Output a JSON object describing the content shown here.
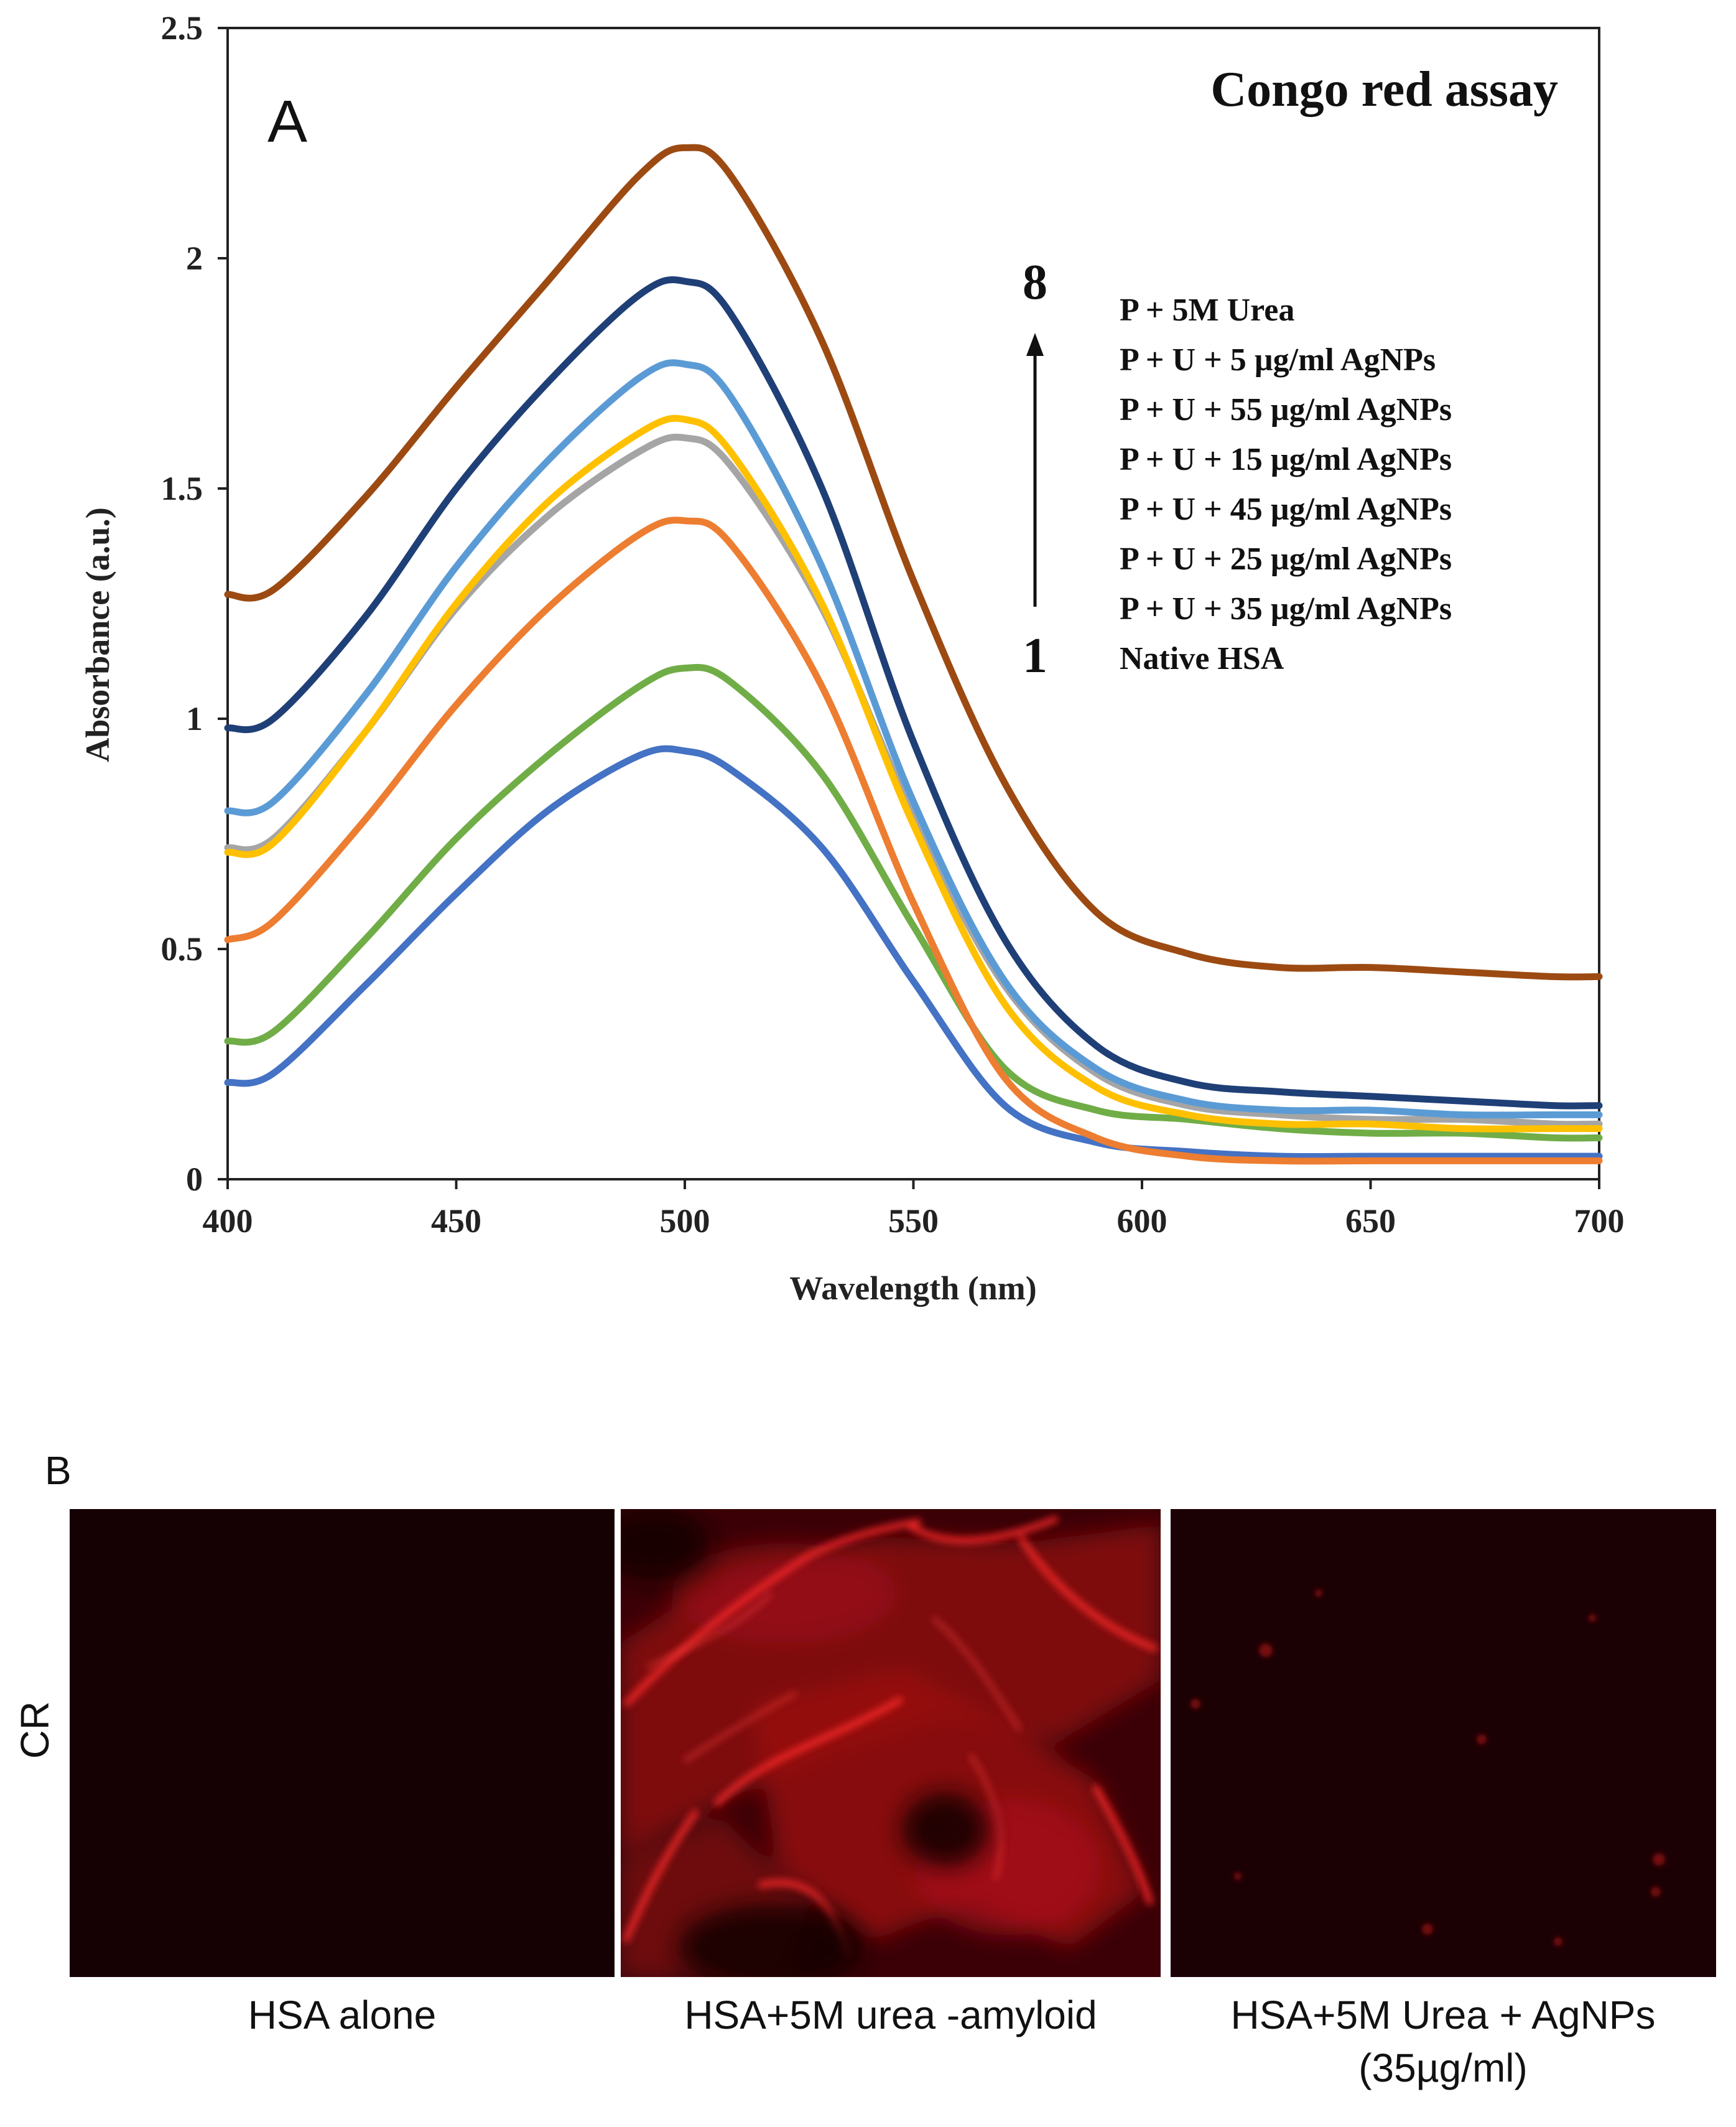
{
  "chart_data": {
    "type": "line",
    "title": "Congo red assay",
    "panel_label": "A",
    "xlabel": "Wavelength (nm)",
    "ylabel": "Absorbance (a.u.)",
    "xlim": [
      400,
      700
    ],
    "ylim": [
      0,
      2.5
    ],
    "x_ticks": [
      "400",
      "450",
      "500",
      "550",
      "600",
      "650",
      "700"
    ],
    "y_ticks": [
      "0",
      "0.5",
      "1",
      "1.5",
      "2",
      "2.5"
    ],
    "grid": false,
    "legend_position": "top-right",
    "order_marks": {
      "top": "8",
      "bottom": "1"
    },
    "x": [
      400,
      410,
      430,
      450,
      470,
      490,
      500,
      510,
      530,
      550,
      570,
      590,
      610,
      630,
      650,
      670,
      690,
      700
    ],
    "series": [
      {
        "name": "P + 5M Urea",
        "color": "#9C4A12",
        "values": [
          1.27,
          1.28,
          1.48,
          1.72,
          1.95,
          2.18,
          2.24,
          2.18,
          1.82,
          1.3,
          0.86,
          0.58,
          0.49,
          0.46,
          0.46,
          0.45,
          0.44,
          0.44
        ]
      },
      {
        "name": "P + U + 5 µg/ml AgNPs",
        "color": "#1F3F77",
        "values": [
          0.98,
          1.0,
          1.22,
          1.5,
          1.73,
          1.92,
          1.95,
          1.88,
          1.5,
          0.95,
          0.52,
          0.29,
          0.21,
          0.19,
          0.18,
          0.17,
          0.16,
          0.16
        ]
      },
      {
        "name": "P + U + 55 µg/ml AgNPs",
        "color": "#5B9BD5",
        "values": [
          0.8,
          0.82,
          1.05,
          1.33,
          1.56,
          1.74,
          1.77,
          1.7,
          1.33,
          0.82,
          0.43,
          0.24,
          0.17,
          0.15,
          0.15,
          0.14,
          0.14,
          0.14
        ]
      },
      {
        "name": "P + U + 15 µg/ml AgNPs",
        "color": "#FFC000",
        "values": [
          0.71,
          0.73,
          0.97,
          1.25,
          1.47,
          1.62,
          1.65,
          1.58,
          1.25,
          0.77,
          0.38,
          0.2,
          0.14,
          0.12,
          0.12,
          0.11,
          0.11,
          0.11
        ]
      },
      {
        "name": "P + U + 45 µg/ml AgNPs",
        "color": "#A5A5A5",
        "values": [
          0.72,
          0.74,
          0.97,
          1.24,
          1.44,
          1.58,
          1.61,
          1.55,
          1.24,
          0.79,
          0.42,
          0.23,
          0.16,
          0.14,
          0.13,
          0.13,
          0.12,
          0.12
        ]
      },
      {
        "name": "P + U + 25 µg/ml AgNPs",
        "color": "#ED7D31",
        "values": [
          0.52,
          0.56,
          0.78,
          1.03,
          1.24,
          1.4,
          1.43,
          1.38,
          1.07,
          0.6,
          0.22,
          0.09,
          0.05,
          0.04,
          0.04,
          0.04,
          0.04,
          0.04
        ]
      },
      {
        "name": "P + U + 35 µg/ml AgNPs",
        "color": "#70AD47",
        "values": [
          0.3,
          0.32,
          0.52,
          0.74,
          0.92,
          1.07,
          1.11,
          1.08,
          0.88,
          0.55,
          0.24,
          0.15,
          0.13,
          0.11,
          0.1,
          0.1,
          0.09,
          0.09
        ]
      },
      {
        "name": "Native HSA",
        "color": "#4472C4",
        "values": [
          0.21,
          0.23,
          0.42,
          0.62,
          0.8,
          0.92,
          0.93,
          0.89,
          0.72,
          0.43,
          0.16,
          0.08,
          0.06,
          0.05,
          0.05,
          0.05,
          0.05,
          0.05
        ]
      }
    ]
  },
  "panel_b": {
    "label": "B",
    "row_label": "CR",
    "images": [
      {
        "caption": [
          "HSA alone"
        ],
        "base_color": "#150004"
      },
      {
        "caption": [
          "HSA+5M urea -amyloid"
        ],
        "base_color": "#3a0006"
      },
      {
        "caption": [
          "HSA+5M Urea + AgNPs",
          "(35µg/ml)"
        ],
        "base_color": "#1b0004"
      }
    ]
  }
}
